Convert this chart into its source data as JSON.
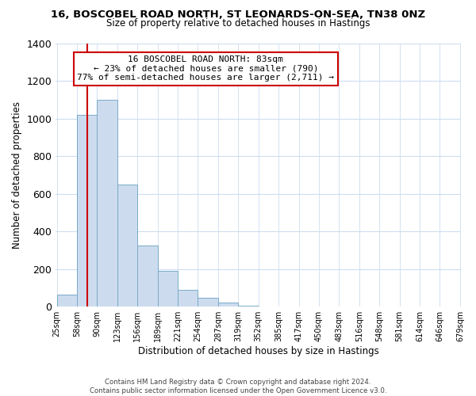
{
  "title": "16, BOSCOBEL ROAD NORTH, ST LEONARDS-ON-SEA, TN38 0NZ",
  "subtitle": "Size of property relative to detached houses in Hastings",
  "xlabel": "Distribution of detached houses by size in Hastings",
  "ylabel": "Number of detached properties",
  "bar_color": "#ccdcee",
  "bar_edge_color": "#7aaac8",
  "background_color": "#ffffff",
  "grid_color": "#ccddf0",
  "bins": [
    "25sqm",
    "58sqm",
    "90sqm",
    "123sqm",
    "156sqm",
    "189sqm",
    "221sqm",
    "254sqm",
    "287sqm",
    "319sqm",
    "352sqm",
    "385sqm",
    "417sqm",
    "450sqm",
    "483sqm",
    "516sqm",
    "548sqm",
    "581sqm",
    "614sqm",
    "646sqm",
    "679sqm"
  ],
  "values": [
    65,
    1020,
    1100,
    650,
    325,
    190,
    88,
    48,
    20,
    7,
    2,
    0,
    0,
    0,
    0,
    0,
    0,
    0,
    0,
    0
  ],
  "ylim": [
    0,
    1400
  ],
  "yticks": [
    0,
    200,
    400,
    600,
    800,
    1000,
    1200,
    1400
  ],
  "property_line_bin": 1.5,
  "property_line_label": "16 BOSCOBEL ROAD NORTH: 83sqm",
  "annotation_line1": "← 23% of detached houses are smaller (790)",
  "annotation_line2": "77% of semi-detached houses are larger (2,711) →",
  "annotation_box_color": "#ffffff",
  "annotation_box_edge_color": "#cc0000",
  "footer1": "Contains HM Land Registry data © Crown copyright and database right 2024.",
  "footer2": "Contains public sector information licensed under the Open Government Licence v3.0."
}
